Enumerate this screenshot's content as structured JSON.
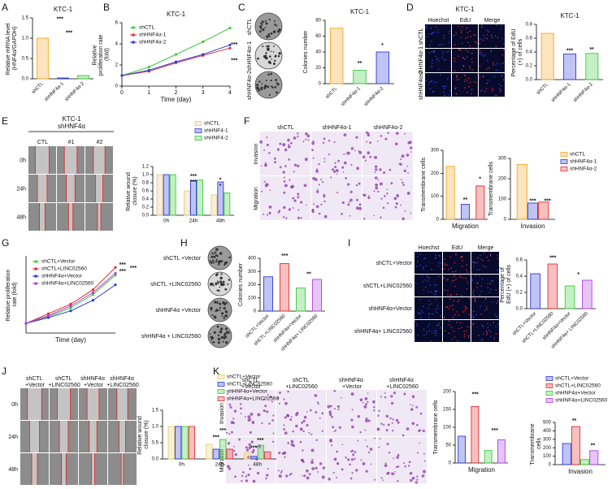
{
  "panel_labels": [
    "A",
    "B",
    "C",
    "D",
    "E",
    "F",
    "G",
    "H",
    "I",
    "J",
    "K"
  ],
  "figures": [
    {
      "rows": [
        "shCTL",
        "shHNF4α-1",
        "shHNF4α-2"
      ]
    },
    {
      "title": "KTC-1",
      "cols": [
        "Hoechst",
        "EdU",
        "Merge"
      ],
      "rows": [
        "shCTL",
        "shHNF4α-1",
        "shHNF4α-2"
      ]
    },
    {
      "title": "KTC-1",
      "subtitle": "shHNF4α",
      "cols": [
        "CTL",
        "#1",
        "#2"
      ],
      "rows": [
        "0h",
        "24h",
        "48h"
      ]
    },
    {
      "cols": [
        "shCTL",
        "shHNF4α-1",
        "shHNF4α-2"
      ],
      "rows": [
        "Invasion",
        "Migration"
      ]
    },
    {
      "rows": [
        "shCTL +Vector",
        "shCTL +LINC02560",
        "shHNF4α +Vector",
        "shHNF4α + LINC02560"
      ]
    },
    {
      "cols": [
        "Hoechst",
        "EdU",
        "Merge"
      ],
      "rows": [
        "shCTL+Vector",
        "shCTL+LINC02560",
        "shHNF4α+Vector",
        "shHNF4α+ LINC02560"
      ]
    },
    {
      "cols": [
        "shCTL +Vector",
        "shCTL +LINC02560",
        "shHNF4α +Vector",
        "shHNF4α +LINC02560"
      ],
      "rows": [
        "0h",
        "24h",
        "48h"
      ]
    },
    {
      "cols": [
        "shCTL +Vector",
        "shCTL +LINC02560",
        "shHNF4α +Vector",
        "shHNF4α +LINC02560"
      ],
      "rows": [
        "Invasion",
        "Migration"
      ]
    }
  ],
  "chart_data": [
    {
      "type": "bar",
      "title": "KTC-1",
      "ylabel": "Relative mRNA level (HNF4α/GAPDH)",
      "categories": [
        "shCTL",
        "shHNF4α-1",
        "shHNF4α-2"
      ],
      "values": [
        1.0,
        0.02,
        0.08
      ],
      "colors": [
        "#f5a623",
        "#2e3adb",
        "#3ec93e"
      ],
      "ylim": [
        0,
        1.5
      ],
      "yticks": [
        {
          "value": 0,
          "label": "0.0"
        },
        0.5,
        {
          "value": 1,
          "label": "1.0"
        },
        1.5
      ],
      "annotations": [
        "***",
        "***"
      ]
    },
    {
      "type": "line",
      "title": "KTC-1",
      "xlabel": "Time (day)",
      "ylabel": "Relative proliferation rate (fold)",
      "x": [
        0,
        1,
        2,
        3,
        4
      ],
      "xlim": [
        0,
        4
      ],
      "xticks": [
        0,
        1,
        2,
        3,
        4
      ],
      "ylim": [
        0,
        6
      ],
      "yticks": [
        0,
        2,
        4,
        6
      ],
      "series": [
        {
          "name": "shCTL",
          "color": "#3ec93e",
          "values": [
            1,
            1.8,
            3.0,
            4.2,
            5.5
          ]
        },
        {
          "name": "shHNF4α-1",
          "color": "#e03030",
          "values": [
            1,
            1.4,
            2.2,
            2.9,
            3.6
          ]
        },
        {
          "name": "shHNF4α-2",
          "color": "#2e3adb",
          "values": [
            1,
            1.5,
            2.3,
            3.0,
            3.9
          ]
        }
      ],
      "annotations": [
        "***",
        "***"
      ]
    },
    {
      "type": "bar",
      "title": "KTC-1",
      "ylabel": "Colonies number",
      "categories": [
        "shCTL",
        "shHNF4α-1",
        "shHNF4α-2"
      ],
      "values": [
        70,
        17,
        40
      ],
      "colors": [
        "#f5a623",
        "#3ec93e",
        "#2e3adb"
      ],
      "ylim": [
        0,
        80
      ],
      "yticks": [
        0,
        20,
        40,
        60,
        80
      ],
      "annotations": [
        "**",
        "*"
      ]
    },
    {
      "type": "bar",
      "title": "KTC-1",
      "ylabel": "Percentage of EdU (+) of cells",
      "categories": [
        "shCTL",
        "shHNF4α-1",
        "shHNF4α-2"
      ],
      "values": [
        0.67,
        0.37,
        0.38
      ],
      "colors": [
        "#f5a623",
        "#2e3adb",
        "#3ec93e"
      ],
      "ylim": [
        0,
        0.8
      ],
      "yticks": [
        {
          "value": 0,
          "label": "0.0"
        },
        0.2,
        0.4,
        0.6,
        0.8
      ],
      "annotations": [
        "***",
        "**"
      ]
    },
    {
      "type": "bar",
      "ylabel": "Relative wound closure (%)",
      "categories": [
        "0h",
        "24h",
        "48h"
      ],
      "ylim": [
        0,
        1.2
      ],
      "yticks": [
        {
          "value": 0,
          "label": "0.0"
        },
        0.2,
        0.4,
        0.6,
        0.8,
        {
          "value": 1,
          "label": "1.0"
        },
        1.2
      ],
      "series": [
        {
          "name": "shCTL",
          "color": "#e8c880",
          "values": [
            1.0,
            0.6,
            0.5
          ]
        },
        {
          "name": "shHNF4-1",
          "color": "#2e3adb",
          "values": [
            1.0,
            0.85,
            0.82
          ]
        },
        {
          "name": "shHNF4-2",
          "color": "#3ec93e",
          "values": [
            1.0,
            0.87,
            0.55
          ]
        }
      ],
      "annotations": [
        "***",
        "***",
        "*",
        "*"
      ]
    },
    {
      "type": "bar",
      "xlabel": "Migration",
      "ylabel": "Transmembrane cells",
      "values": [
        230,
        65,
        145
      ],
      "colors": [
        "#f5a623",
        "#2e3adb",
        "#e03030"
      ],
      "ylim": [
        0,
        300
      ],
      "yticks": [
        0,
        100,
        200,
        300
      ],
      "annotations": [
        "**",
        "*"
      ]
    },
    {
      "type": "bar",
      "xlabel": "Invasion",
      "ylabel": "Transmembrane cells",
      "ylim": [
        0,
        300
      ],
      "yticks": [
        0,
        100,
        200,
        300
      ],
      "series": [
        {
          "name": "shCTL",
          "color": "#f5a623",
          "values": [
            270
          ]
        },
        {
          "name": "shHNF4α-1",
          "color": "#2e3adb",
          "values": [
            80
          ]
        },
        {
          "name": "shHNF4α-2",
          "color": "#e03030",
          "values": [
            85
          ]
        }
      ],
      "annotations": [
        "***",
        "***"
      ]
    },
    {
      "type": "line",
      "xlabel": "Time (day)",
      "ylabel": "Relative proliferation rate (fold)",
      "x": [
        0,
        1,
        2,
        3,
        4
      ],
      "xlim": [
        0,
        4
      ],
      "ylim": [
        0,
        8
      ],
      "series": [
        {
          "name": "shCTL+Vector",
          "color": "#3ec93e",
          "values": [
            1,
            1.7,
            2.6,
            4.0,
            6.0
          ]
        },
        {
          "name": "shCTL+LINC02560",
          "color": "#e03030",
          "values": [
            1,
            2.0,
            3.0,
            4.5,
            6.8
          ]
        },
        {
          "name": "shHNF4α+Vector",
          "color": "#2e3adb",
          "values": [
            1,
            1.6,
            2.3,
            3.4,
            5.0
          ]
        },
        {
          "name": "shHNF4α+LINC02560",
          "color": "#b040e0",
          "values": [
            1,
            1.8,
            2.8,
            4.2,
            6.2
          ]
        }
      ],
      "annotations": [
        "***",
        "***",
        "***"
      ]
    },
    {
      "type": "bar",
      "ylabel": "Colonies number",
      "categories": [
        "shCTL+Vector",
        "shCTL+LINC02560",
        "shHNF4α+Vector",
        "shHNF4α+ LINC02560"
      ],
      "values": [
        260,
        360,
        175,
        240
      ],
      "colors": [
        "#2e3adb",
        "#e03030",
        "#3ec93e",
        "#b040e0"
      ],
      "ylim": [
        0,
        400
      ],
      "yticks": [
        0,
        100,
        200,
        300,
        400
      ],
      "annotations": [
        "***",
        "**"
      ]
    },
    {
      "type": "bar",
      "ylabel": "Percentage of EdU (+) of cells",
      "categories": [
        "shCTL+Vector",
        "shCTL+LINC02560",
        "shHNF4α+Vector",
        "shHNF4α+ LINC02560"
      ],
      "values": [
        0.43,
        0.55,
        0.28,
        0.35
      ],
      "colors": [
        "#2e3adb",
        "#e03030",
        "#3ec93e",
        "#b040e0"
      ],
      "ylim": [
        0,
        0.6
      ],
      "yticks": [
        {
          "value": 0,
          "label": "0.0"
        },
        0.2,
        0.4,
        0.6
      ],
      "annotations": [
        "***",
        "*"
      ]
    },
    {
      "type": "bar",
      "ylabel": "Relative wound closure (%)",
      "categories": [
        "0h",
        "24h",
        "48h"
      ],
      "ylim": [
        0,
        1.5
      ],
      "yticks": [
        {
          "value": 0,
          "label": "0.0"
        },
        0.5,
        {
          "value": 1,
          "label": "1.0"
        },
        1.5
      ],
      "series": [
        {
          "name": "shCTL+Vector",
          "color": "#e8d070",
          "values": [
            1.0,
            0.45,
            0.2
          ]
        },
        {
          "name": "shCTL+LINC02560",
          "color": "#2e3adb",
          "values": [
            1.0,
            0.3,
            0.08
          ]
        },
        {
          "name": "shHNF4α+Vector",
          "color": "#3ec93e",
          "values": [
            1.0,
            0.6,
            0.42
          ]
        },
        {
          "name": "shHNF4α+LINC02560",
          "color": "#e03030",
          "values": [
            1.0,
            0.3,
            0.22
          ]
        }
      ],
      "annotations": [
        "***",
        "***",
        "***",
        "***"
      ]
    },
    {
      "type": "bar",
      "xlabel": "Migration",
      "ylabel": "Transmembrane cells",
      "values": [
        75,
        158,
        35,
        65
      ],
      "colors": [
        "#2e3adb",
        "#e03030",
        "#3ec93e",
        "#b040e0"
      ],
      "ylim": [
        0,
        200
      ],
      "yticks": [
        0,
        50,
        100,
        150,
        200
      ],
      "annotations": [
        "***",
        "***"
      ]
    },
    {
      "type": "bar",
      "xlabel": "Invasion",
      "ylabel": "Transmembrane cells",
      "ylim": [
        0,
        500
      ],
      "yticks": [
        0,
        100,
        200,
        300,
        400,
        500
      ],
      "series": [
        {
          "name": "shCTL+Vector",
          "color": "#2e3adb",
          "values": [
            250
          ]
        },
        {
          "name": "shCTL+LINC02560",
          "color": "#e03030",
          "values": [
            450
          ]
        },
        {
          "name": "shHNF4α+Vector",
          "color": "#3ec93e",
          "values": [
            60
          ]
        },
        {
          "name": "shHNF4α+LINC02560",
          "color": "#b040e0",
          "values": [
            165
          ]
        }
      ],
      "annotations": [
        "**",
        "**"
      ]
    }
  ]
}
